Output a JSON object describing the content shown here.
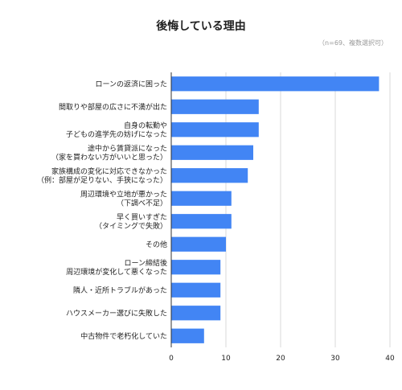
{
  "chart_data": {
    "type": "bar",
    "orientation": "horizontal",
    "title": "後悔している理由",
    "subtitle": "（n=69、複数選択可）",
    "xlabel": "",
    "ylabel": "",
    "xlim": [
      0,
      40
    ],
    "xticks": [
      0,
      10,
      20,
      30,
      40
    ],
    "grid": true,
    "legend": "none",
    "bar_color": "#4285f4",
    "categories": [
      [
        "ローンの返済に困った"
      ],
      [
        "間取りや部屋の広さに不満が出た"
      ],
      [
        "自身の転勤や",
        "子どもの進学先の妨げになった"
      ],
      [
        "途中から賃貸派になった",
        "（家を買わない方がいいと思った）"
      ],
      [
        "家族構成の変化に対応できなかった",
        "（例：部屋が足りない、手狭になった）"
      ],
      [
        "周辺環境や立地が悪かった",
        "（下調べ不足）"
      ],
      [
        "早く買いすぎた",
        "（タイミングで失敗）"
      ],
      [
        "その他"
      ],
      [
        "ローン締結後",
        "周辺環境が変化して悪くなった"
      ],
      [
        "隣人・近所トラブルがあった"
      ],
      [
        "ハウスメーカー選びに失敗した"
      ],
      [
        "中古物件で老朽化していた"
      ]
    ],
    "values": [
      38,
      16,
      16,
      15,
      14,
      11,
      11,
      10,
      9,
      9,
      9,
      6
    ]
  }
}
